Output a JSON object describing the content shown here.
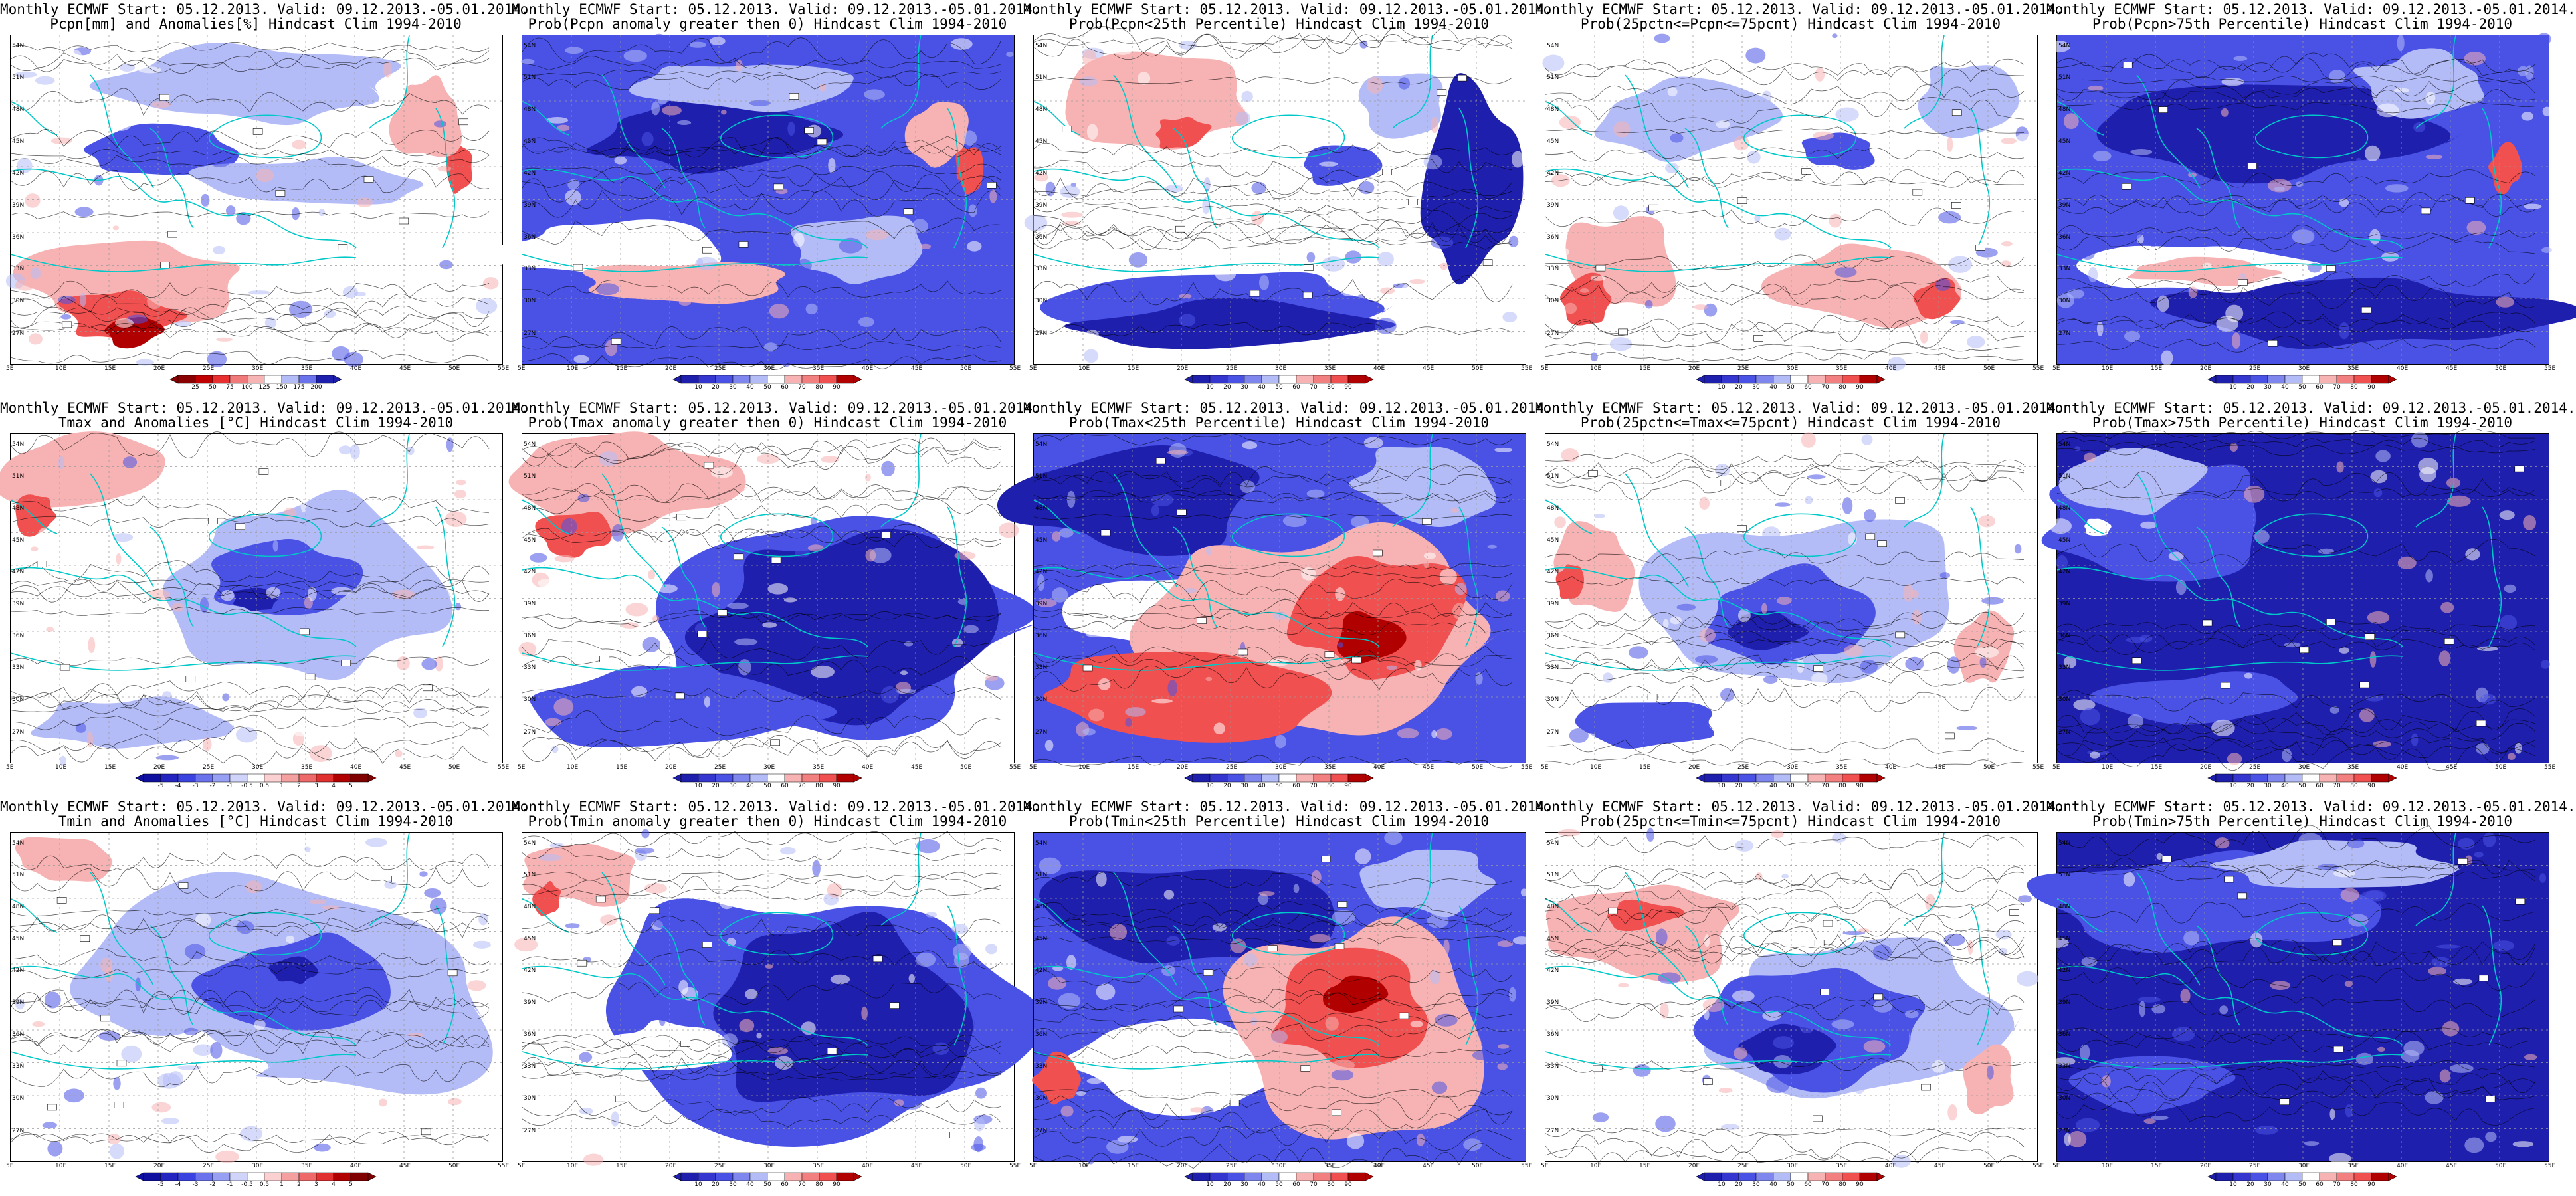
{
  "header": "Monthly ECMWF Start: 05.12.2013. Valid: 09.12.2013.-05.01.2014.",
  "axes": {
    "lon": [
      "5E",
      "10E",
      "15E",
      "20E",
      "25E",
      "30E",
      "35E",
      "40E",
      "45E",
      "50E",
      "55E"
    ],
    "lat": [
      "54N",
      "51N",
      "48N",
      "45N",
      "42N",
      "39N",
      "36N",
      "33N",
      "30N",
      "27N"
    ]
  },
  "colorbars": {
    "pcpn_anom": [
      "25",
      "50",
      "75",
      "100",
      "125",
      "150",
      "175",
      "200"
    ],
    "temp_anom": [
      "-5",
      "-4",
      "-3",
      "-2",
      "-1",
      "-0.5",
      "0.5",
      "1",
      "2",
      "3",
      "4",
      "5"
    ],
    "prob": [
      "10",
      "20",
      "30",
      "40",
      "50",
      "60",
      "70",
      "80",
      "90"
    ]
  },
  "colors": {
    "blue_dark": "#1f1fae",
    "blue_mid": "#4a52e6",
    "blue_light": "#b4bcf7",
    "white": "#ffffff",
    "red_light": "#f7b3b3",
    "red_mid": "#f05050",
    "red_dark": "#b00000",
    "coast": "#00c8c8",
    "contour": "#000000"
  },
  "panels": [
    {
      "title2": "Pcpn[mm] and Anomalies[%] Hindcast Clim 1994-2010",
      "cbar": "pcpn_anom",
      "pattern": "p_anom"
    },
    {
      "title2": "Prob(Pcpn anomaly greater then 0) Hindcast Clim 1994-2010",
      "cbar": "prob",
      "pattern": "p_prob0"
    },
    {
      "title2": "Prob(Pcpn<25th Percentile) Hindcast Clim 1994-2010",
      "cbar": "prob",
      "pattern": "p_low"
    },
    {
      "title2": "Prob(25pctn<=Pcpn<=75pcnt) Hindcast Clim 1994-2010",
      "cbar": "prob",
      "pattern": "p_mid"
    },
    {
      "title2": "Prob(Pcpn>75th Percentile) Hindcast Clim 1994-2010",
      "cbar": "prob",
      "pattern": "p_high"
    },
    {
      "title2": "Tmax and Anomalies [°C] Hindcast Clim 1994-2010",
      "cbar": "temp_anom",
      "pattern": "t_anom"
    },
    {
      "title2": "Prob(Tmax anomaly greater then 0) Hindcast Clim 1994-2010",
      "cbar": "prob",
      "pattern": "t_prob0"
    },
    {
      "title2": "Prob(Tmax<25th Percentile) Hindcast Clim 1994-2010",
      "cbar": "prob",
      "pattern": "t_low"
    },
    {
      "title2": "Prob(25pctn<=Tmax<=75pcnt) Hindcast Clim 1994-2010",
      "cbar": "prob",
      "pattern": "t_mid"
    },
    {
      "title2": "Prob(Tmax>75th Percentile) Hindcast Clim 1994-2010",
      "cbar": "prob",
      "pattern": "t_high"
    },
    {
      "title2": "Tmin and Anomalies [°C] Hindcast Clim 1994-2010",
      "cbar": "temp_anom",
      "pattern": "n_anom"
    },
    {
      "title2": "Prob(Tmin anomaly greater then 0) Hindcast Clim 1994-2010",
      "cbar": "prob",
      "pattern": "n_prob0"
    },
    {
      "title2": "Prob(Tmin<25th Percentile) Hindcast Clim 1994-2010",
      "cbar": "prob",
      "pattern": "n_low"
    },
    {
      "title2": "Prob(25pctn<=Tmin<=75pcnt) Hindcast Clim 1994-2010",
      "cbar": "prob",
      "pattern": "n_mid"
    },
    {
      "title2": "Prob(Tmin>75th Percentile) Hindcast Clim 1994-2010",
      "cbar": "prob",
      "pattern": "n_high"
    }
  ]
}
